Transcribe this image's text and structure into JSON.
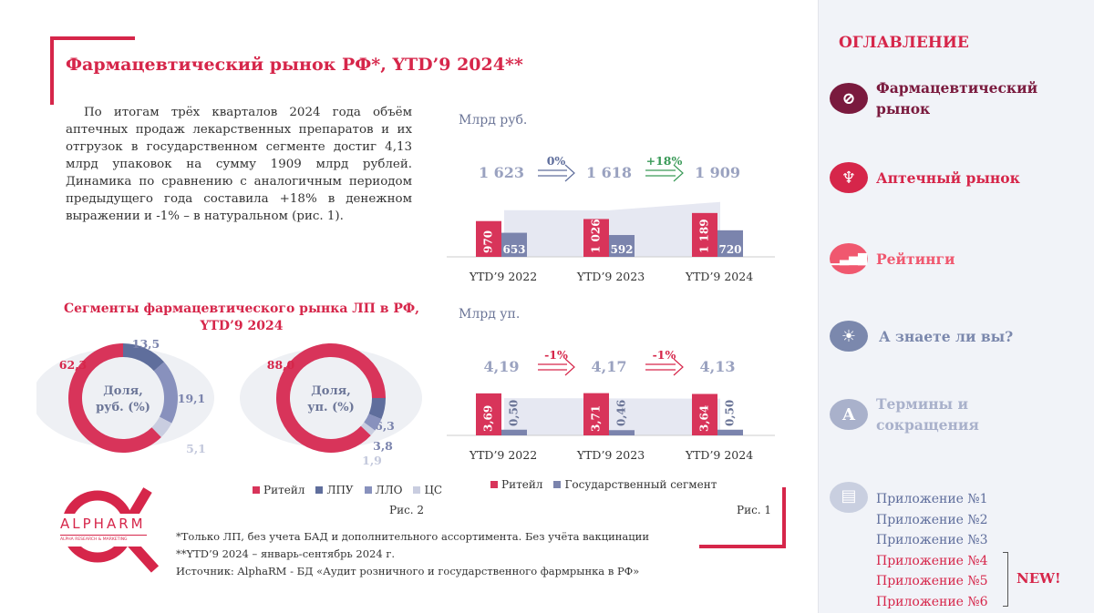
{
  "title": "Фармацевтический рынок РФ*, YTD’9 2024**",
  "paragraph": "По итогам трёх кварталов 2024 года объём аптечных продаж лекарственных препаратов и их отгрузок в государственном сегменте достиг 4,13 млрд упаковок на сумму 1909 млрд рублей. Динамика по сравнению с аналогичным периодом предыдущего года составила +18% в денежном выражении и -1% – в натуральном (рис. 1).",
  "colors": {
    "accent": "#d6264a",
    "retail": "#d8345a",
    "state": "#7b84ad",
    "lpu": "#5f6e9c",
    "llo": "#8891bd",
    "cs": "#c9cde0",
    "growth": "#3a9a58"
  },
  "chart_data": [
    {
      "type": "bar",
      "unit_label": "Млрд руб.",
      "categories": [
        "YTD’9 2022",
        "YTD’9 2023",
        "YTD’9 2024"
      ],
      "series": [
        {
          "name": "Ритейл",
          "values": [
            970,
            1026,
            1189
          ],
          "labels": [
            "970",
            "1 026",
            "1 189"
          ]
        },
        {
          "name": "Государственный сегмент",
          "values": [
            653,
            592,
            720
          ],
          "labels": [
            "653",
            "592",
            "720"
          ]
        }
      ],
      "totals": [
        "1 623",
        "1 618",
        "1 909"
      ],
      "changes": [
        {
          "text": "0%",
          "color": "#5f6e9c"
        },
        {
          "text": "+18%",
          "color": "#3a9a58"
        }
      ]
    },
    {
      "type": "bar",
      "unit_label": "Млрд уп.",
      "categories": [
        "YTD’9 2022",
        "YTD’9 2023",
        "YTD’9 2024"
      ],
      "series": [
        {
          "name": "Ритейл",
          "values": [
            3.69,
            3.71,
            3.64
          ],
          "labels": [
            "3,69",
            "3,71",
            "3,64"
          ]
        },
        {
          "name": "Государственный сегмент",
          "values": [
            0.5,
            0.46,
            0.5
          ],
          "labels": [
            "0,50",
            "0,46",
            "0,50"
          ]
        }
      ],
      "totals": [
        "4,19",
        "4,17",
        "4,13"
      ],
      "changes": [
        {
          "text": "-1%",
          "color": "#d6264a"
        },
        {
          "text": "-1%",
          "color": "#d6264a"
        }
      ],
      "legend": [
        "Ритейл",
        "Государственный сегмент"
      ],
      "fig": "Рис. 1"
    },
    {
      "type": "pie",
      "title": "Сегменты фармацевтического рынка ЛП в РФ, YTD’9 2024",
      "center_label": "Доля, руб. (%)",
      "slices": [
        {
          "name": "ЛПУ",
          "value": 13.5,
          "label": "13,5"
        },
        {
          "name": "ЛЛО",
          "value": 19.1,
          "label": "19,1"
        },
        {
          "name": "ЦС",
          "value": 5.1,
          "label": "5,1"
        },
        {
          "name": "Ритейл",
          "value": 62.3,
          "label": "62,3"
        }
      ]
    },
    {
      "type": "pie",
      "center_label": "Доля, уп. (%)",
      "slices": [
        {
          "name": "ЛПУ",
          "value": 6.3,
          "label": "6,3"
        },
        {
          "name": "ЛЛО",
          "value": 3.8,
          "label": "3,8"
        },
        {
          "name": "ЦС",
          "value": 1.9,
          "label": "1,9"
        },
        {
          "name": "Ритейл",
          "value": 88.0,
          "label": "88,0"
        }
      ],
      "legend": [
        "Ритейл",
        "ЛПУ",
        "ЛЛО",
        "ЦС"
      ],
      "fig": "Рис. 2"
    }
  ],
  "logo": {
    "name": "ALPHARM",
    "tagline": "ALPHA RESEARCH & MARKETING"
  },
  "footnotes": [
    "*Только ЛП, без учета БАД и дополнительного ассортимента. Без учёта вакцинации",
    "**YTD’9 2024 – январь-сентябрь 2024 г.",
    "Источник: AlphaRM - БД «Аудит розничного и государственного фармрынка в РФ»"
  ],
  "sidebar": {
    "heading": "ОГЛАВЛЕНИЕ",
    "items": [
      {
        "label": "Фармацевтический рынок",
        "icon": "pills-icon",
        "color": "#7a1a3e"
      },
      {
        "label": "Аптечный рынок",
        "icon": "pharmacy-bowl-icon",
        "color": "#d6264a"
      },
      {
        "label": "Рейтинги",
        "icon": "bar-chart-icon",
        "color": "#f0586f"
      },
      {
        "label": "А знаете ли вы?",
        "icon": "lightbulb-icon",
        "color": "#7b88ad"
      },
      {
        "label": "Термины и сокращения",
        "icon": "letter-a-icon",
        "color": "#a9b1cb",
        "glyph": "A"
      }
    ],
    "appendix": [
      "Приложение №1",
      "Приложение №2",
      "Приложение №3",
      "Приложение №4",
      "Приложение №5",
      "Приложение №6"
    ],
    "new_badge": "NEW!"
  }
}
